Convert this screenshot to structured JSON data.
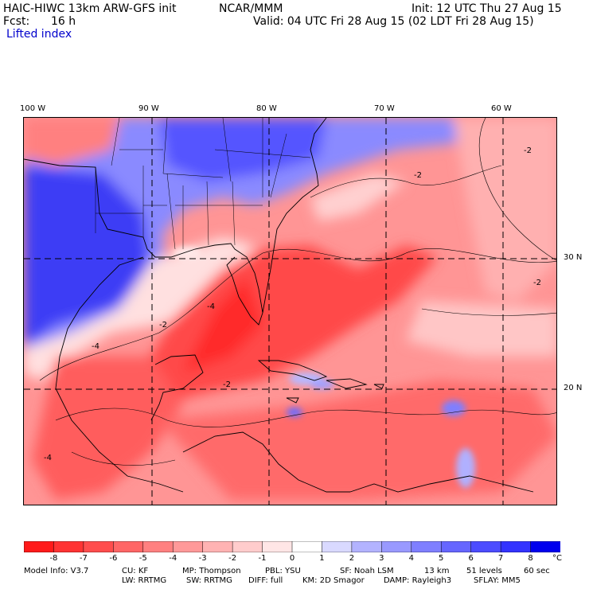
{
  "header": {
    "model_title": "HAIC-HIWC 13km ARW-GFS init",
    "center": "NCAR/MMM",
    "init": "Init: 12 UTC Thu 27 Aug 15",
    "fcst_label": "Fcst:",
    "fcst_value": "16 h",
    "valid": "Valid: 04 UTC Fri 28 Aug 15 (02 LDT Fri 28 Aug 15)",
    "field": "Lifted index"
  },
  "map": {
    "lon_labels": [
      "100 W",
      "90 W",
      "80 W",
      "70 W",
      "60 W"
    ],
    "lat_labels": [
      "30 N",
      "20 N"
    ],
    "contour_labels": [
      "-2",
      "-2",
      "-2",
      "-2",
      "-4",
      "-4",
      "-2",
      "-4"
    ]
  },
  "colorbar": {
    "unit": "°C",
    "ticks": [
      "-8",
      "-7",
      "-6",
      "-5",
      "-4",
      "-3",
      "-2",
      "-1",
      "0",
      "1",
      "2",
      "3",
      "4",
      "5",
      "6",
      "7",
      "8"
    ],
    "colors": [
      "#ff1a1a",
      "#ff3333",
      "#ff4d4d",
      "#ff6666",
      "#ff8080",
      "#ff9999",
      "#ffb3b3",
      "#ffcccc",
      "#ffe6e6",
      "#ffffff",
      "#d9d9ff",
      "#b3b3ff",
      "#9999ff",
      "#7f7fff",
      "#6666ff",
      "#4c4cff",
      "#3333ff",
      "#0000ee"
    ]
  },
  "footer": {
    "line1": [
      "Model Info: V3.7",
      "CU: KF",
      "MP: Thompson",
      "PBL: YSU",
      "SF: Noah LSM",
      "13 km",
      "51 levels",
      "60 sec"
    ],
    "line2": [
      "LW: RRTMG",
      "SW: RRTMG",
      "DIFF: full",
      "KM: 2D Smagor",
      "DAMP: Rayleigh3",
      "SFLAY: MM5"
    ]
  }
}
